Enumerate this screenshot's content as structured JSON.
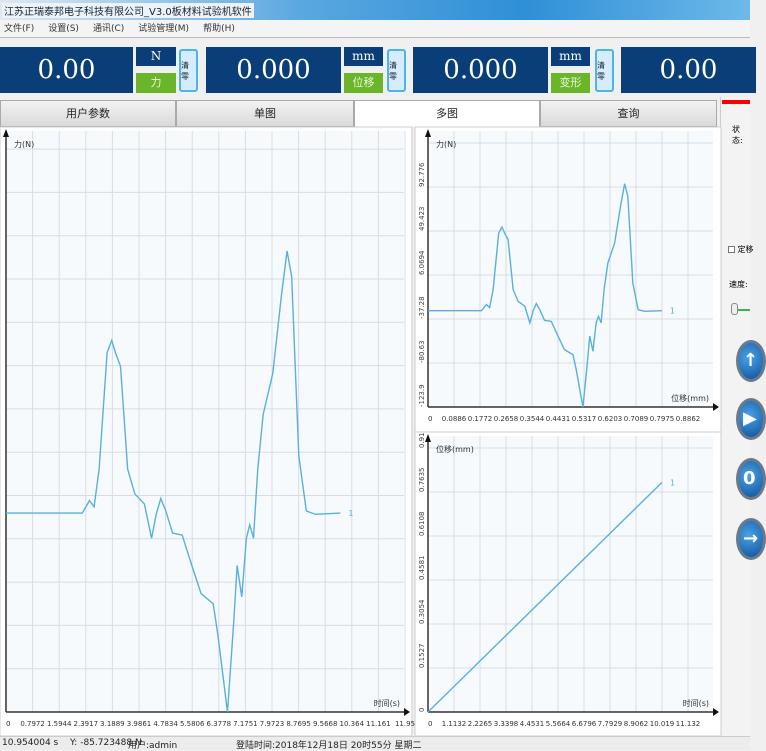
{
  "window": {
    "title": "江苏正瑞泰邦电子科技有限公司_V3.0板材料试验机软件"
  },
  "menu": [
    "文件(F)",
    "设置(S)",
    "通讯(C)",
    "试验管理(M)",
    "帮助(H)"
  ],
  "readouts": [
    {
      "value": "0.00",
      "unit": "N",
      "quantity": "力",
      "zero_label": "清零"
    },
    {
      "value": "0.000",
      "unit": "mm",
      "quantity": "位移",
      "zero_label": "清零"
    },
    {
      "value": "0.000",
      "unit": "mm",
      "quantity": "变形",
      "zero_label": "清零"
    },
    {
      "value": "0.00"
    }
  ],
  "tabs": [
    {
      "label": "用户参数"
    },
    {
      "label": "单图"
    },
    {
      "label": "多图",
      "active": true
    },
    {
      "label": "查询"
    }
  ],
  "side_panel": {
    "status_label": "状态:",
    "fixed_disp_label": "定移",
    "speed_label": "速度:",
    "status_color": "#ff0000"
  },
  "colors": {
    "curve": "#5ab0dc",
    "grid": "#d8dde3",
    "plot_bg": "#f6fafd"
  },
  "chart_data": [
    {
      "type": "line",
      "ylabel": "力(N)",
      "xlabel": "时间(s)",
      "x_ticks": [
        "0",
        "0.7972",
        "1.5944",
        "2.3917",
        "3.1889",
        "3.9861",
        "4.7834",
        "5.5806",
        "6.3778",
        "7.1751",
        "7.9723",
        "8.7695",
        "9.5668",
        "10.364",
        "11.161",
        "11.95"
      ],
      "series_label": "1"
    },
    {
      "type": "line",
      "ylabel": "力(N)",
      "xlabel": "位移(mm)",
      "x_ticks": [
        "0",
        "0.0886",
        "0.1772",
        "0.2658",
        "0.3544",
        "0.4431",
        "0.5317",
        "0.6203",
        "0.7089",
        "0.7975",
        "0.8862"
      ],
      "y_ticks": [
        "-123.9",
        "-80.63",
        "-37.28",
        "6.0694",
        "49.423",
        "92.776"
      ],
      "series_label": "1",
      "points": [
        [
          0,
          -29
        ],
        [
          0.182,
          -29
        ],
        [
          0.199,
          -23
        ],
        [
          0.21,
          -26
        ],
        [
          0.222,
          -8
        ],
        [
          0.241,
          47.5
        ],
        [
          0.252,
          53.4
        ],
        [
          0.261,
          47.5
        ],
        [
          0.273,
          41
        ],
        [
          0.29,
          -8
        ],
        [
          0.307,
          -19.8
        ],
        [
          0.33,
          -24.7
        ],
        [
          0.347,
          -41
        ],
        [
          0.358,
          -29.6
        ],
        [
          0.369,
          -22
        ],
        [
          0.381,
          -28
        ],
        [
          0.397,
          -38.5
        ],
        [
          0.42,
          -39.5
        ],
        [
          0.443,
          -54
        ],
        [
          0.465,
          -67.4
        ],
        [
          0.494,
          -72.3
        ],
        [
          0.505,
          -87
        ],
        [
          0.528,
          -123.9
        ],
        [
          0.543,
          -80.5
        ],
        [
          0.551,
          -54
        ],
        [
          0.562,
          -69
        ],
        [
          0.573,
          -41
        ],
        [
          0.581,
          -34.6
        ],
        [
          0.59,
          -41
        ],
        [
          0.6,
          -8.3
        ],
        [
          0.613,
          18
        ],
        [
          0.636,
          37.7
        ],
        [
          0.656,
          73.8
        ],
        [
          0.67,
          96.1
        ],
        [
          0.681,
          83.7
        ],
        [
          0.698,
          -1.7
        ],
        [
          0.716,
          -28
        ],
        [
          0.738,
          -29.6
        ],
        [
          0.797,
          -29
        ]
      ]
    },
    {
      "type": "line",
      "ylabel": "位移(mm)",
      "xlabel": "时间(s)",
      "x_ticks": [
        "0",
        "1.1132",
        "2.2265",
        "3.3398",
        "4.4531",
        "5.5664",
        "6.6796",
        "7.7929",
        "8.9062",
        "10.019",
        "11.132"
      ],
      "y_ticks": [
        "0",
        "0.1527",
        "0.3054",
        "0.4581",
        "0.6108",
        "0.7635",
        "0.91"
      ],
      "series_label": "1",
      "points": [
        [
          0,
          0
        ],
        [
          10.02,
          0.797
        ]
      ]
    }
  ],
  "status": {
    "x": "10.954004 s",
    "y": "Y: -85.723488 N",
    "user": "用户:admin",
    "login": "登陆时间:2018年12月18日 20时55分 星期二"
  }
}
